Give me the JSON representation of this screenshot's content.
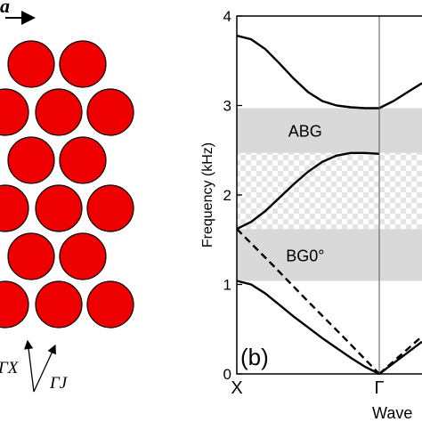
{
  "panel_a": {
    "lattice_label": "a",
    "circle_color": "#ee0000",
    "direction_labels": {
      "gamma_x": "ΓX",
      "gamma_j": "ΓJ"
    }
  },
  "chart_data": {
    "type": "line",
    "title": "",
    "panel_label": "(b)",
    "ylabel": "Frequency (kHz)",
    "xlabel": "Wave",
    "ylim": [
      0,
      4
    ],
    "yticks": [
      0,
      1,
      2,
      3,
      4
    ],
    "xticks": [
      {
        "label": "X",
        "k": 0
      },
      {
        "label": "Γ",
        "k": 1
      }
    ],
    "xlim": [
      0,
      1.3
    ],
    "grid": false,
    "bands": [
      {
        "label": "ABG",
        "y0": 2.47,
        "y1": 2.97,
        "style": "solid",
        "color": "#d9d9d9"
      },
      {
        "label": "",
        "y0": 1.62,
        "y1": 2.47,
        "style": "checker",
        "color": "#e6e6e6"
      },
      {
        "label": "BG0°",
        "y0": 1.04,
        "y1": 1.62,
        "style": "solid",
        "color": "#d9d9d9"
      }
    ],
    "series": [
      {
        "style": "solid",
        "x": [
          0,
          0.1,
          0.2,
          0.3,
          0.4,
          0.5,
          0.6,
          0.7,
          0.8,
          0.9,
          1.0
        ],
        "y": [
          3.78,
          3.74,
          3.63,
          3.47,
          3.3,
          3.15,
          3.05,
          3.0,
          2.98,
          2.97,
          2.97
        ]
      },
      {
        "style": "solid",
        "x": [
          1.0,
          1.1,
          1.2,
          1.3
        ],
        "y": [
          2.97,
          3.05,
          3.15,
          3.25
        ]
      },
      {
        "style": "solid",
        "x": [
          0,
          0.1,
          0.2,
          0.3,
          0.4,
          0.5,
          0.6,
          0.7,
          0.8,
          0.9,
          1.0
        ],
        "y": [
          1.62,
          1.7,
          1.82,
          1.97,
          2.12,
          2.26,
          2.37,
          2.44,
          2.47,
          2.47,
          2.46
        ]
      },
      {
        "style": "solid",
        "x": [
          0,
          0.1,
          0.2,
          0.3,
          0.4,
          0.5,
          0.6,
          0.7,
          0.8,
          0.9,
          1.0
        ],
        "y": [
          1.04,
          1.0,
          0.9,
          0.77,
          0.64,
          0.52,
          0.4,
          0.29,
          0.18,
          0.08,
          0.0
        ]
      },
      {
        "style": "solid",
        "x": [
          1.0,
          1.1,
          1.2,
          1.3
        ],
        "y": [
          0.0,
          0.12,
          0.24,
          0.36
        ]
      },
      {
        "style": "dashed",
        "x": [
          0,
          0.25,
          0.5,
          0.75,
          1.0
        ],
        "y": [
          1.62,
          1.22,
          0.81,
          0.41,
          0.0
        ]
      },
      {
        "style": "dashed",
        "x": [
          1.0,
          1.1,
          1.2,
          1.3
        ],
        "y": [
          0.0,
          0.14,
          0.28,
          0.42
        ]
      }
    ]
  }
}
